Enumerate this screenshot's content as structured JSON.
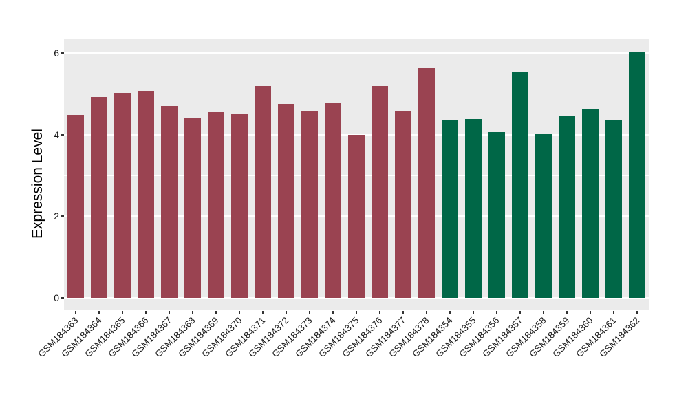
{
  "figure": {
    "background": "#FFFFFF"
  },
  "chart_data": {
    "type": "bar",
    "title": "",
    "xlabel": "",
    "ylabel": "Expression Level",
    "ylim": [
      -0.3,
      6.35
    ],
    "yticks": [
      0,
      2,
      4,
      6
    ],
    "minor_gridlines": [
      1,
      3,
      5
    ],
    "grid": "on",
    "legend_position": "none",
    "panel_bg": "#EBEBEB",
    "grid_color": "#FFFFFF",
    "tick_color": "#333333",
    "axis_text_color": "#1A1A1A",
    "groups": [
      {
        "name": "group-left",
        "color": "#9A4351"
      },
      {
        "name": "group-right",
        "color": "#006747"
      }
    ],
    "bars": [
      {
        "label": "GSM184363",
        "value": 4.49,
        "group": 0
      },
      {
        "label": "GSM184364",
        "value": 4.93,
        "group": 0
      },
      {
        "label": "GSM184365",
        "value": 5.03,
        "group": 0
      },
      {
        "label": "GSM184366",
        "value": 5.07,
        "group": 0
      },
      {
        "label": "GSM184367",
        "value": 4.7,
        "group": 0
      },
      {
        "label": "GSM184368",
        "value": 4.4,
        "group": 0
      },
      {
        "label": "GSM184369",
        "value": 4.55,
        "group": 0
      },
      {
        "label": "GSM184370",
        "value": 4.5,
        "group": 0
      },
      {
        "label": "GSM184371",
        "value": 5.19,
        "group": 0
      },
      {
        "label": "GSM184372",
        "value": 4.75,
        "group": 0
      },
      {
        "label": "GSM184373",
        "value": 4.58,
        "group": 0
      },
      {
        "label": "GSM184374",
        "value": 4.79,
        "group": 0
      },
      {
        "label": "GSM184375",
        "value": 4.0,
        "group": 0
      },
      {
        "label": "GSM184376",
        "value": 5.19,
        "group": 0
      },
      {
        "label": "GSM184377",
        "value": 4.58,
        "group": 0
      },
      {
        "label": "GSM184378",
        "value": 5.63,
        "group": 0
      },
      {
        "label": "GSM184354",
        "value": 4.36,
        "group": 1
      },
      {
        "label": "GSM184355",
        "value": 4.38,
        "group": 1
      },
      {
        "label": "GSM184356",
        "value": 4.07,
        "group": 1
      },
      {
        "label": "GSM184357",
        "value": 5.54,
        "group": 1
      },
      {
        "label": "GSM184358",
        "value": 4.01,
        "group": 1
      },
      {
        "label": "GSM184359",
        "value": 4.47,
        "group": 1
      },
      {
        "label": "GSM184360",
        "value": 4.64,
        "group": 1
      },
      {
        "label": "GSM184361",
        "value": 4.36,
        "group": 1
      },
      {
        "label": "GSM184362",
        "value": 6.03,
        "group": 1
      }
    ]
  }
}
